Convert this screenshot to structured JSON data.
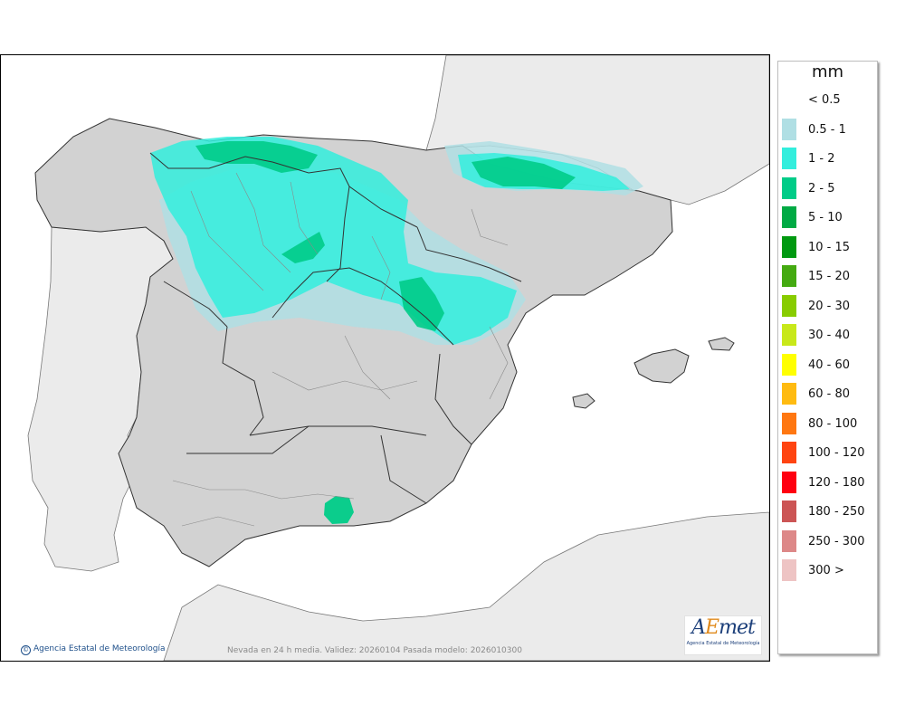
{
  "map": {
    "caption": "Nevada en 24 h media. Validez: 20260104 Pasada modelo: 2026010300",
    "copyright": "Agencia Estatal de Meteorología",
    "copyright_icon": "copyright-icon",
    "logo": {
      "mark_a": "A",
      "mark_e": "E",
      "mark_rest": "met",
      "subtitle": "Agencia Estatal de Meteorología"
    },
    "colors": {
      "sea": "#ffffff",
      "land_neighbour": "#ebebeb",
      "land_spain": "#d2d2d2",
      "border": "#333333"
    }
  },
  "legend": {
    "title": "mm",
    "items": [
      {
        "label": "< 0.5",
        "color": "#ffffff"
      },
      {
        "label": "0.5 - 1",
        "color": "#b0dfe4"
      },
      {
        "label": "1 - 2",
        "color": "#33eedd"
      },
      {
        "label": "2 - 5",
        "color": "#00cc88"
      },
      {
        "label": "5 - 10",
        "color": "#00aa44"
      },
      {
        "label": "10 - 15",
        "color": "#009911"
      },
      {
        "label": "15 - 20",
        "color": "#44aa11"
      },
      {
        "label": "20 - 30",
        "color": "#88cc00"
      },
      {
        "label": "30 - 40",
        "color": "#c8e81a"
      },
      {
        "label": "40 - 60",
        "color": "#ffff00"
      },
      {
        "label": "60 - 80",
        "color": "#ffbb11"
      },
      {
        "label": "80 - 100",
        "color": "#ff7711"
      },
      {
        "label": "100 - 120",
        "color": "#ff4411"
      },
      {
        "label": "120 - 180",
        "color": "#ff0011"
      },
      {
        "label": "180 - 250",
        "color": "#cc5555"
      },
      {
        "label": "250 - 300",
        "color": "#dd8888"
      },
      {
        "label": "300 >",
        "color": "#eec4c4"
      }
    ]
  }
}
